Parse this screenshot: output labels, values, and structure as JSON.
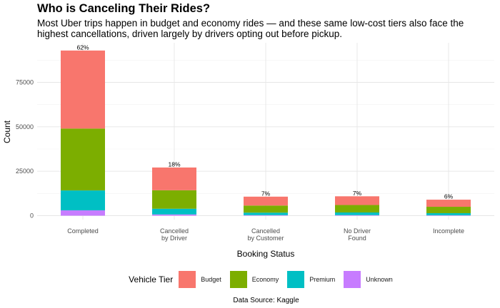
{
  "chart_data": {
    "type": "bar",
    "stacked": true,
    "title": "Who is Canceling Their Rides?",
    "subtitle": "Most Uber trips happen in budget and economy rides — and these same low-cost tiers also face the highest cancellations, driven largely by drivers opting out before pickup.",
    "xlabel": "Booking Status",
    "ylabel": "Count",
    "categories": [
      "Completed",
      "Cancelled\nby Driver",
      "Cancelled\nby Customer",
      "No Driver\nFound",
      "Incomplete"
    ],
    "series": [
      {
        "name": "Unknown",
        "color": "#C77CFF",
        "values": [
          3000,
          700,
          300,
          300,
          200
        ]
      },
      {
        "name": "Premium",
        "color": "#00BFC4",
        "values": [
          11200,
          3200,
          1400,
          1500,
          1200
        ]
      },
      {
        "name": "Economy",
        "color": "#7CAE00",
        "values": [
          34800,
          10400,
          4000,
          4200,
          3600
        ]
      },
      {
        "name": "Budget",
        "color": "#F8766D",
        "values": [
          43900,
          12800,
          5000,
          4900,
          4000
        ]
      }
    ],
    "totals": [
      92900,
      27100,
      10700,
      10900,
      9000
    ],
    "percent_labels": [
      "62%",
      "18%",
      "7%",
      "7%",
      "6%"
    ],
    "yticks": [
      0,
      25000,
      50000,
      75000
    ],
    "ytick_labels": [
      "0",
      "25000",
      "50000",
      "75000"
    ],
    "ylim": [
      0,
      97000
    ],
    "grid": true,
    "legend": {
      "title": "Vehicle Tier",
      "position": "bottom",
      "entries": [
        "Budget",
        "Economy",
        "Premium",
        "Unknown"
      ]
    },
    "caption": "Data Source: Kaggle"
  }
}
